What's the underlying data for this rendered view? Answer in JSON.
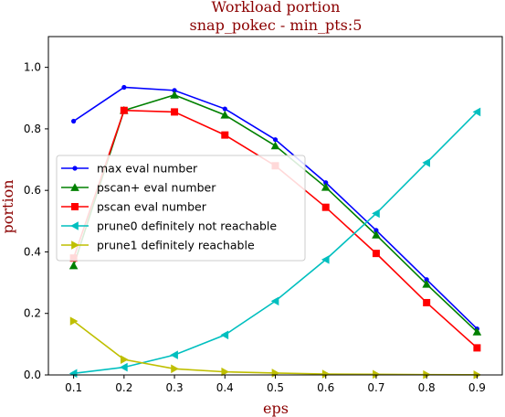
{
  "chart_data": {
    "type": "line",
    "title": "Workload portion",
    "subtitle": "snap_pokec - min_pts:5",
    "xlabel": "eps",
    "ylabel": "portion",
    "x": [
      0.1,
      0.2,
      0.3,
      0.4,
      0.5,
      0.6,
      0.7,
      0.8,
      0.9
    ],
    "xlim": [
      0.05,
      0.95
    ],
    "ylim": [
      0,
      1.1
    ],
    "xticks": [
      "0.1",
      "0.2",
      "0.3",
      "0.4",
      "0.5",
      "0.6",
      "0.7",
      "0.8",
      "0.9"
    ],
    "yticks": [
      "0.0",
      "0.2",
      "0.4",
      "0.6",
      "0.8",
      "1.0"
    ],
    "grid": false,
    "legend_position": "center-left",
    "series": [
      {
        "name": "max eval number",
        "color": "#0000ff",
        "marker": "dot",
        "values": [
          0.825,
          0.935,
          0.925,
          0.865,
          0.765,
          0.625,
          0.47,
          0.31,
          0.15
        ]
      },
      {
        "name": "pscan+ eval number",
        "color": "#008000",
        "marker": "triangle-up",
        "values": [
          0.355,
          0.86,
          0.91,
          0.845,
          0.745,
          0.61,
          0.455,
          0.295,
          0.14
        ]
      },
      {
        "name": "pscan eval number",
        "color": "#ff0000",
        "marker": "square",
        "values": [
          0.38,
          0.86,
          0.855,
          0.78,
          0.68,
          0.545,
          0.395,
          0.235,
          0.088
        ]
      },
      {
        "name": "prune0 definitely not reachable",
        "color": "#00bfbf",
        "marker": "triangle-left",
        "values": [
          0.005,
          0.025,
          0.065,
          0.13,
          0.24,
          0.375,
          0.525,
          0.69,
          0.855
        ]
      },
      {
        "name": "prune1 definitely reachable",
        "color": "#bfbf00",
        "marker": "triangle-right",
        "values": [
          0.175,
          0.05,
          0.02,
          0.01,
          0.006,
          0.003,
          0.002,
          0.001,
          0.0005
        ]
      }
    ]
  }
}
